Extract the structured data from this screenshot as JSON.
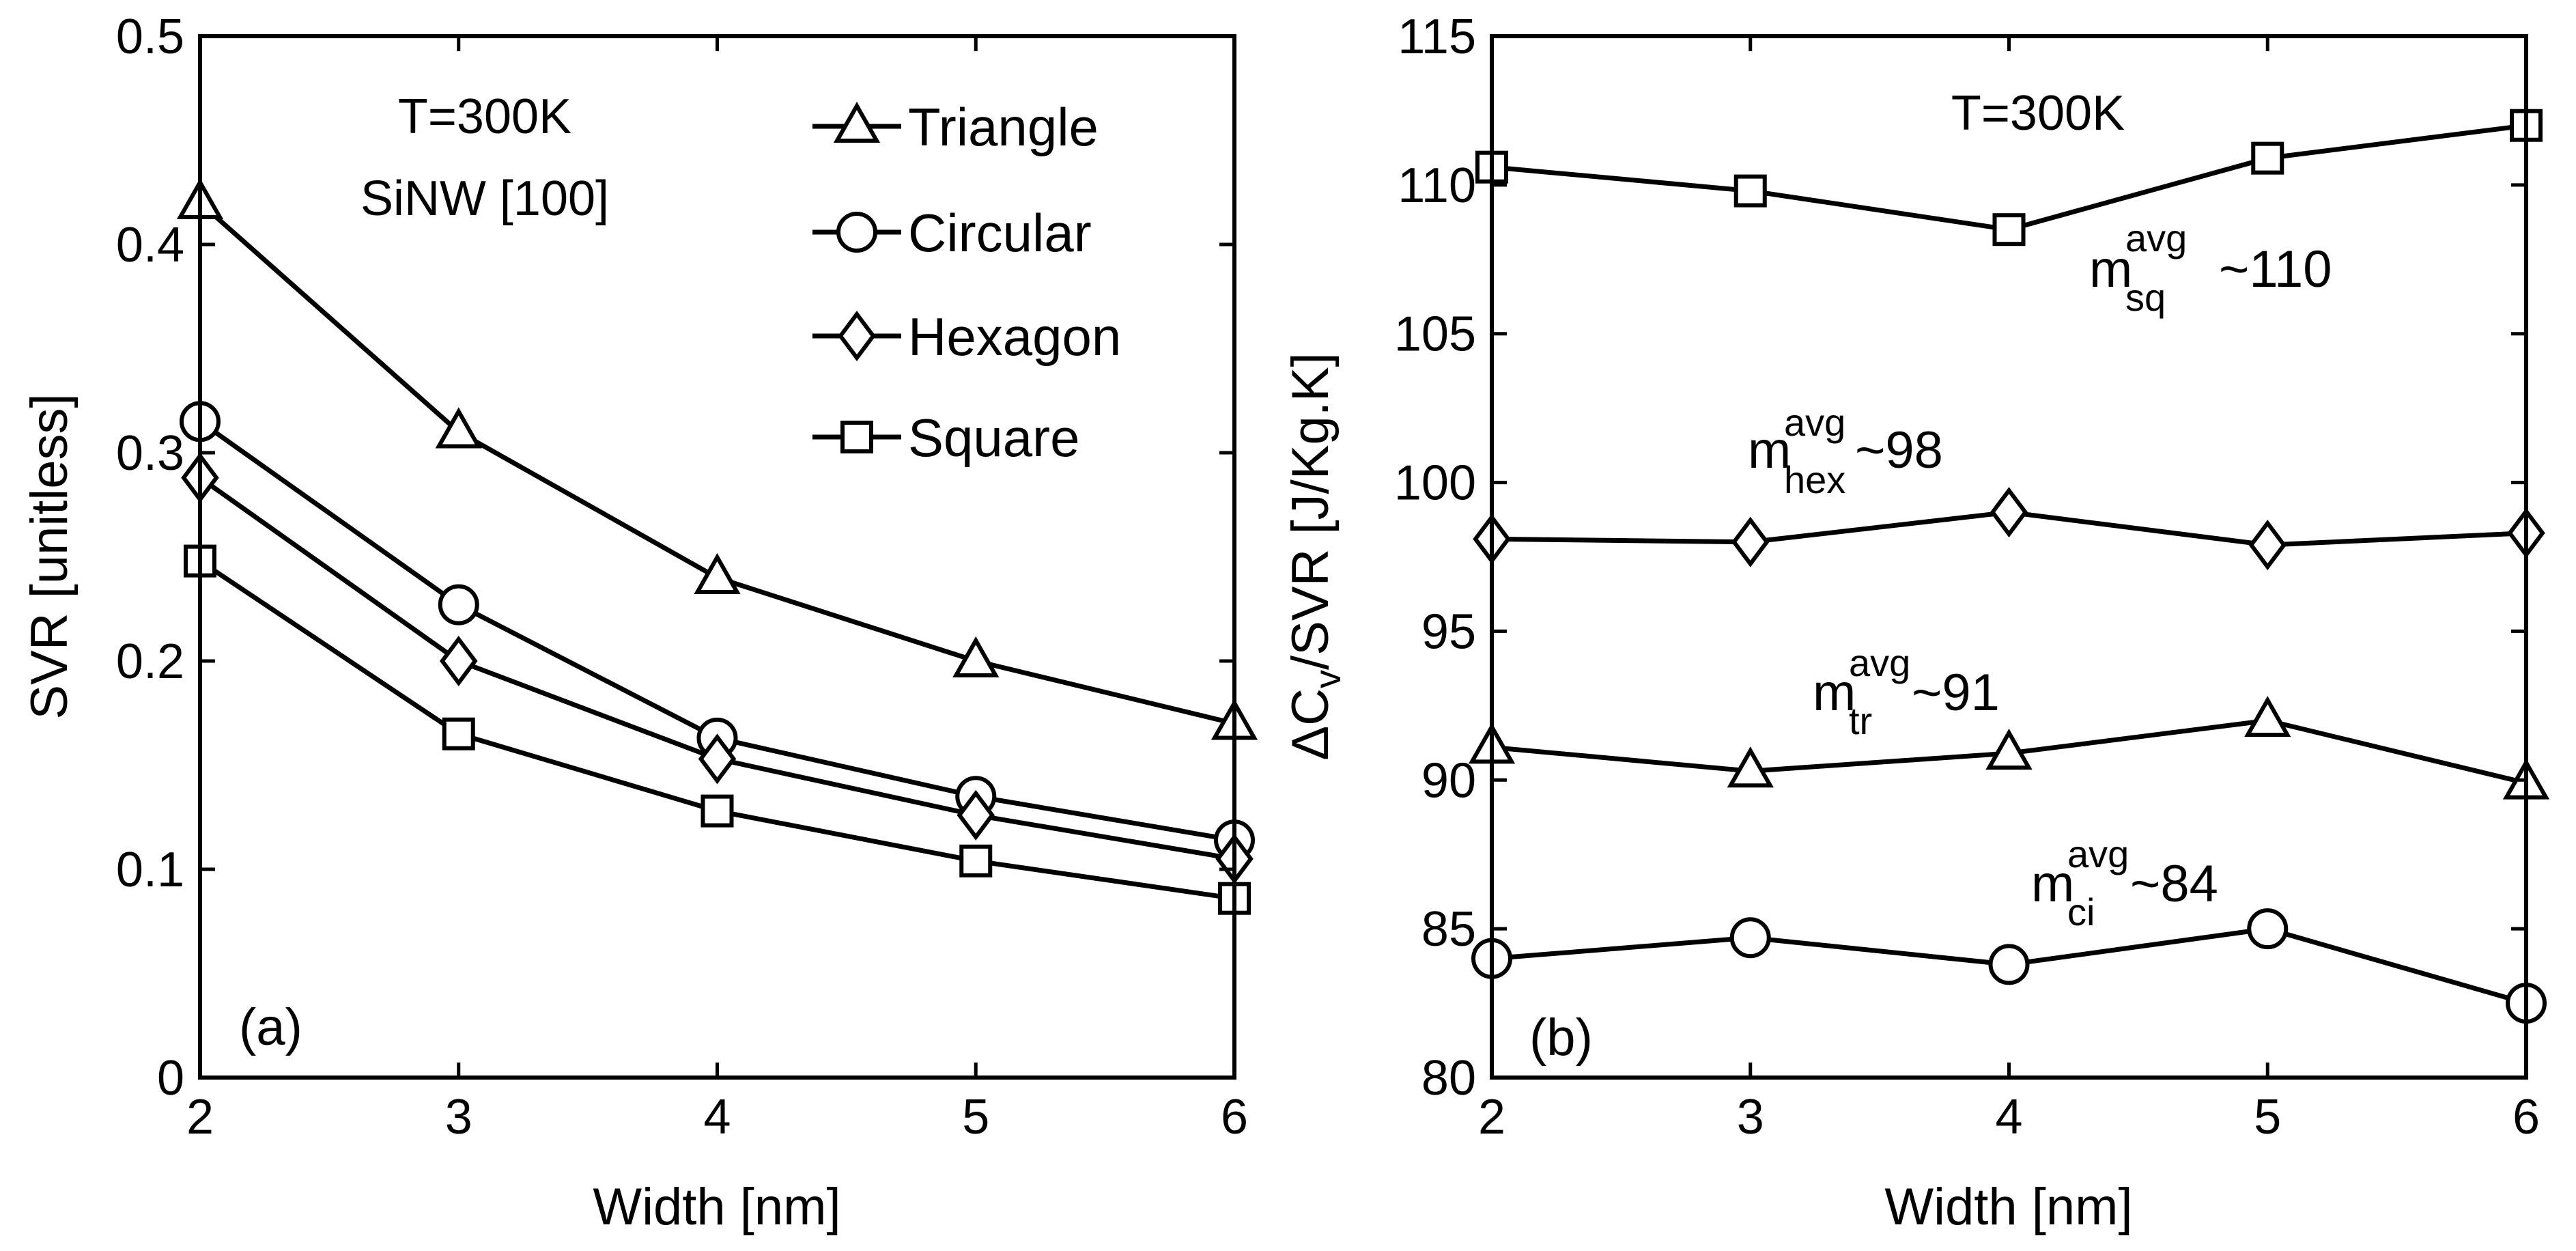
{
  "chart_data": [
    {
      "id": "a",
      "type": "line",
      "panel_label": "(a)",
      "xlabel": "Width [nm]",
      "ylabel": "SVR [unitless]",
      "x": [
        2,
        3,
        4,
        5,
        6
      ],
      "xlim": [
        2,
        6
      ],
      "ylim": [
        0,
        0.5
      ],
      "xticks": [
        "2",
        "3",
        "4",
        "5",
        "6"
      ],
      "yticks": [
        "0",
        "0.1",
        "0.2",
        "0.3",
        "0.4",
        "0.5"
      ],
      "annotations": [
        "T=300K",
        "SiNW [100]"
      ],
      "legend_position": "top-right",
      "series": [
        {
          "name": "Triangle",
          "marker": "triangle",
          "values": [
            0.42,
            0.31,
            0.24,
            0.2,
            0.17
          ]
        },
        {
          "name": "Circular",
          "marker": "circle",
          "values": [
            0.315,
            0.227,
            0.163,
            0.135,
            0.114
          ]
        },
        {
          "name": "Hexagon",
          "marker": "diamond",
          "values": [
            0.288,
            0.2,
            0.153,
            0.126,
            0.105
          ]
        },
        {
          "name": "Square",
          "marker": "square",
          "values": [
            0.248,
            0.165,
            0.128,
            0.104,
            0.086
          ]
        }
      ]
    },
    {
      "id": "b",
      "type": "line",
      "panel_label": "(b)",
      "xlabel": "Width [nm]",
      "ylabel": {
        "prefix": "ΔC",
        "sub": "v",
        "suffix": "/SVR [J/Kg.K]"
      },
      "x": [
        2,
        3,
        4,
        5,
        6
      ],
      "xlim": [
        2,
        6
      ],
      "ylim": [
        80,
        115
      ],
      "xticks": [
        "2",
        "3",
        "4",
        "5",
        "6"
      ],
      "yticks": [
        "80",
        "85",
        "90",
        "95",
        "100",
        "105",
        "110",
        "115"
      ],
      "annotations": [
        "T=300K"
      ],
      "series": [
        {
          "name": "Square",
          "marker": "square",
          "values": [
            110.6,
            109.8,
            108.5,
            110.9,
            112.0
          ]
        },
        {
          "name": "Hexagon",
          "marker": "diamond",
          "values": [
            98.1,
            98.0,
            99.0,
            97.9,
            98.3
          ]
        },
        {
          "name": "Triangle",
          "marker": "triangle",
          "values": [
            91.1,
            90.3,
            90.9,
            92.0,
            89.9
          ]
        },
        {
          "name": "Circular",
          "marker": "circle",
          "values": [
            84.0,
            84.7,
            83.8,
            85.0,
            82.5
          ]
        }
      ],
      "mean_labels": [
        {
          "main": "m",
          "sup": "avg",
          "sub": "sq",
          "value": "~110"
        },
        {
          "main": "m",
          "sup": "avg",
          "sub": "hex",
          "value": "~98"
        },
        {
          "main": "m",
          "sup": "avg",
          "sub": "tr",
          "value": "~91"
        },
        {
          "main": "m",
          "sup": "avg",
          "sub": "ci",
          "value": "~84"
        }
      ]
    }
  ]
}
